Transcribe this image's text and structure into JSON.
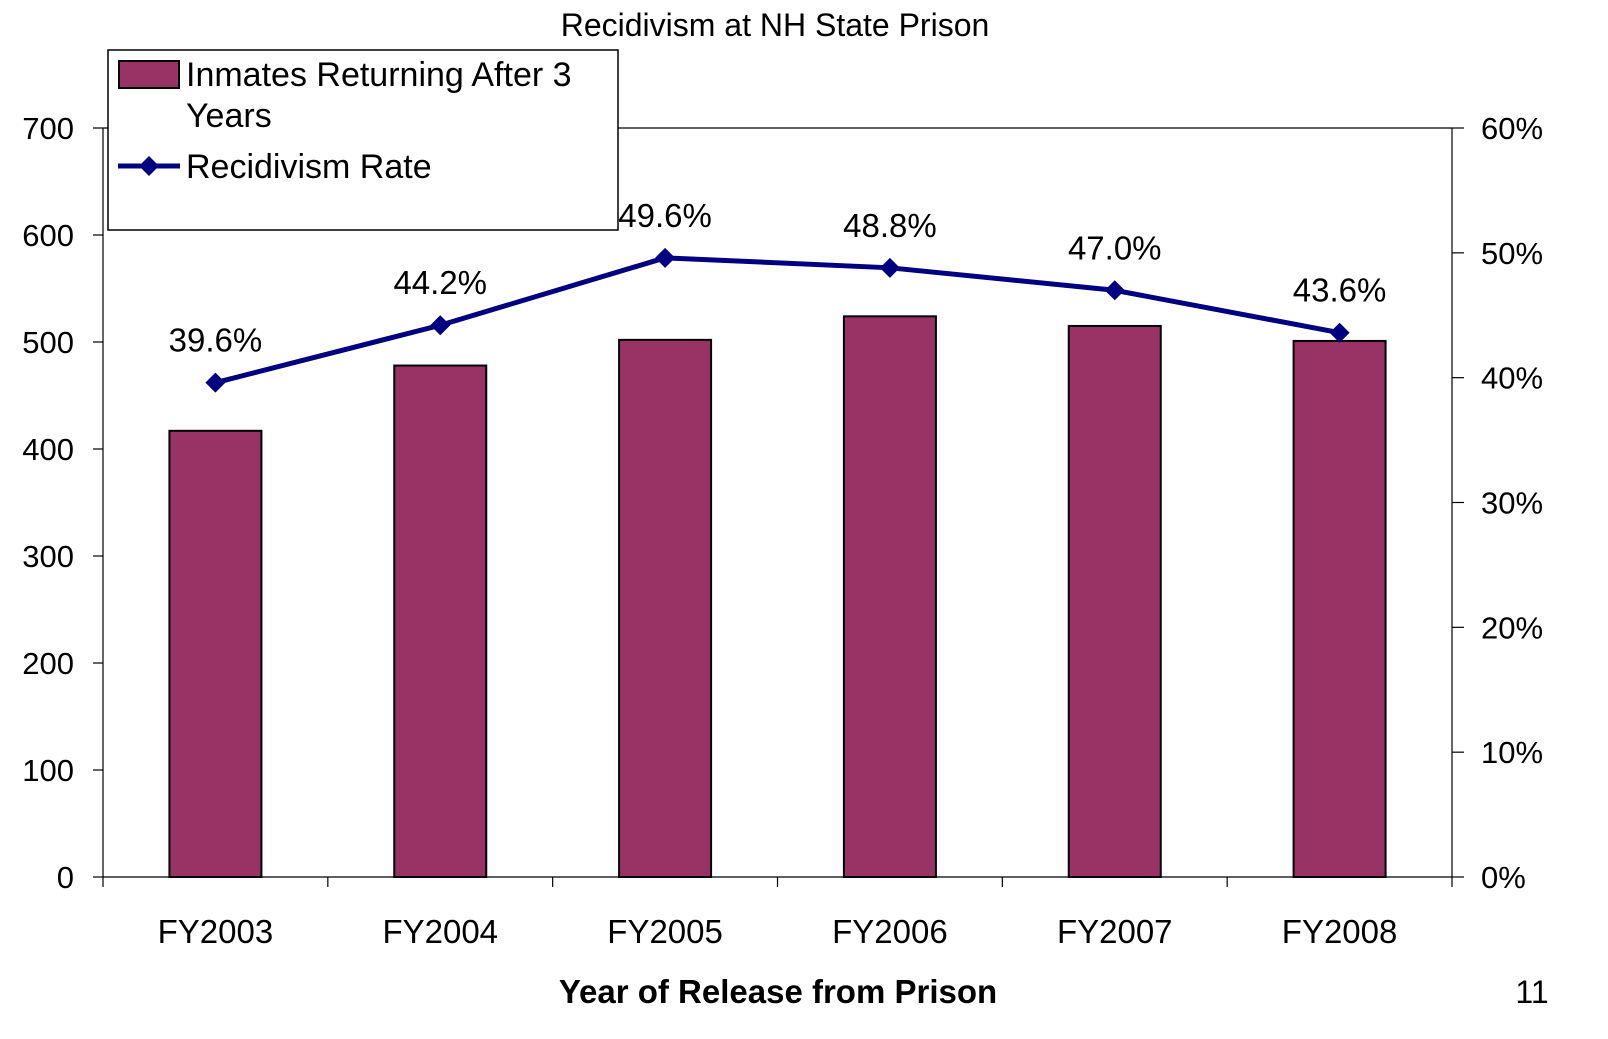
{
  "chart_data": {
    "type": "bar",
    "title": "Recidivism at NH State Prison",
    "xlabel": "Year of Release from Prison",
    "ylabel": "",
    "y2label": "",
    "categories": [
      "FY2003",
      "FY2004",
      "FY2005",
      "FY2006",
      "FY2007",
      "FY2008"
    ],
    "series": [
      {
        "name": "Inmates Returning After 3 Years",
        "type": "bar",
        "axis": "left",
        "color": "#993366",
        "values": [
          417,
          478,
          502,
          524,
          515,
          501
        ]
      },
      {
        "name": "Recidivism Rate",
        "type": "line",
        "axis": "right",
        "color": "#000080",
        "marker": "diamond",
        "values": [
          0.396,
          0.442,
          0.496,
          0.488,
          0.47,
          0.436
        ],
        "data_labels": [
          "39.6%",
          "44.2%",
          "49.6%",
          "48.8%",
          "47.0%",
          "43.6%"
        ]
      }
    ],
    "ylim": [
      0,
      700
    ],
    "y_ticks": [
      "0",
      "100",
      "200",
      "300",
      "400",
      "500",
      "600",
      "700"
    ],
    "y2lim": [
      0,
      0.6
    ],
    "y2_ticks": [
      "0%",
      "10%",
      "20%",
      "30%",
      "40%",
      "50%",
      "60%"
    ],
    "legend": {
      "position": "top-left",
      "bar_label_line1": "Inmates Returning After 3",
      "bar_label_line2": "Years",
      "line_label": "Recidivism Rate"
    },
    "grid": false
  },
  "page_number": "11"
}
